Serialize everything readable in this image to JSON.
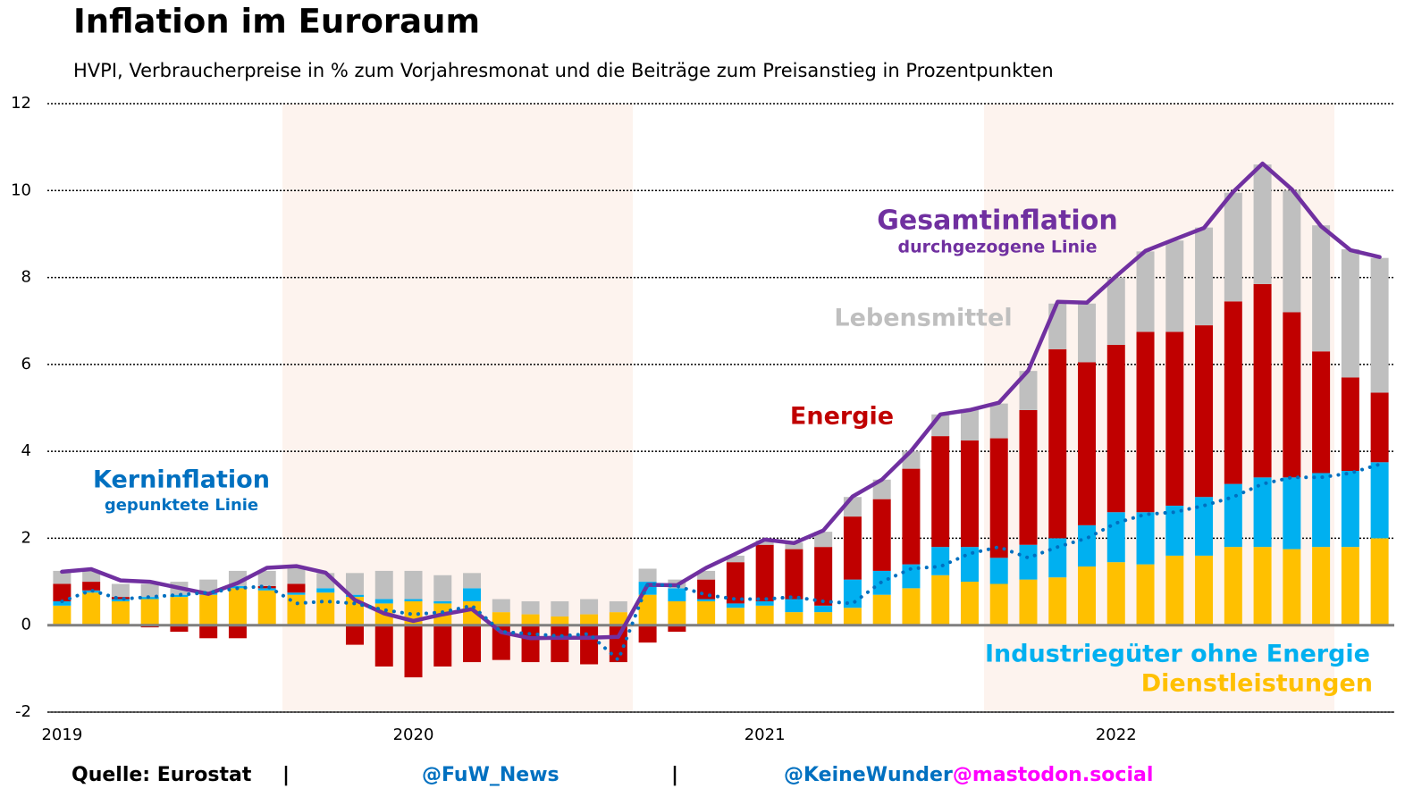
{
  "chart_data": {
    "type": "bar",
    "title": "Inflation im Euroraum",
    "subtitle": "HVPI, Verbraucherpreise in % zum Vorjahresmonat und die Beiträge zum Preisanstieg in Prozentpunkten",
    "categories": [
      "2019",
      null,
      null,
      null,
      null,
      null,
      null,
      null,
      null,
      null,
      null,
      null,
      "2020",
      null,
      null,
      null,
      null,
      null,
      null,
      null,
      null,
      null,
      null,
      null,
      "2021",
      null,
      null,
      null,
      null,
      null,
      null,
      null,
      null,
      null,
      null,
      null,
      "2022",
      null,
      null,
      null,
      null,
      null,
      null,
      null,
      null,
      null
    ],
    "series": [
      {
        "name": "Dienstleistungen",
        "color": "#ffc000",
        "values": [
          0.45,
          0.75,
          0.55,
          0.6,
          0.65,
          0.7,
          0.85,
          0.8,
          0.7,
          0.75,
          0.65,
          0.5,
          0.55,
          0.5,
          0.55,
          0.3,
          0.25,
          0.2,
          0.25,
          0.3,
          0.7,
          0.55,
          0.55,
          0.4,
          0.45,
          0.3,
          0.3,
          0.4,
          0.7,
          0.85,
          1.15,
          1.0,
          0.95,
          1.05,
          1.1,
          1.35,
          1.45,
          1.4,
          1.6,
          1.6,
          1.8,
          1.8,
          1.75,
          1.8,
          1.8,
          2.0
        ]
      },
      {
        "name": "Industriegüter ohne Energie",
        "color": "#00b0f0",
        "values": [
          0.1,
          0.05,
          0.05,
          0.05,
          0.05,
          0.05,
          0.05,
          0.05,
          0.05,
          0.1,
          0.05,
          0.1,
          0.05,
          0.05,
          0.3,
          0,
          0,
          0,
          0,
          0,
          0.3,
          0.3,
          0.05,
          0.1,
          0.1,
          0.3,
          0.15,
          0.65,
          0.55,
          0.55,
          0.65,
          0.8,
          0.6,
          0.8,
          0.9,
          0.95,
          1.15,
          1.2,
          1.15,
          1.35,
          1.45,
          1.6,
          1.65,
          1.7,
          1.75,
          1.75
        ]
      },
      {
        "name": "Energie",
        "color": "#c00000",
        "values": [
          0.4,
          0.2,
          0.05,
          -0.05,
          -0.15,
          -0.3,
          -0.3,
          0.05,
          0.2,
          0,
          -0.45,
          -0.95,
          -1.2,
          -0.95,
          -0.85,
          -0.8,
          -0.85,
          -0.85,
          -0.9,
          -0.85,
          -0.4,
          -0.15,
          0.45,
          0.95,
          1.3,
          1.15,
          1.35,
          1.45,
          1.65,
          2.2,
          2.55,
          2.45,
          2.75,
          3.1,
          4.35,
          3.75,
          3.85,
          4.15,
          4.0,
          3.95,
          4.2,
          4.45,
          3.8,
          2.8,
          2.15,
          1.6
        ]
      },
      {
        "name": "Lebensmittel",
        "color": "#bfbfbf",
        "values": [
          0.3,
          0.25,
          0.3,
          0.3,
          0.3,
          0.3,
          0.35,
          0.35,
          0.4,
          0.35,
          0.5,
          0.65,
          0.65,
          0.6,
          0.35,
          0.3,
          0.3,
          0.35,
          0.35,
          0.25,
          0.3,
          0.2,
          0.2,
          0.15,
          0.1,
          0.15,
          0.35,
          0.45,
          0.45,
          0.4,
          0.5,
          0.7,
          0.8,
          0.9,
          1.05,
          1.35,
          1.55,
          1.85,
          2.1,
          2.25,
          2.5,
          2.75,
          2.8,
          2.9,
          2.95,
          3.1
        ]
      },
      {
        "name": "Gesamtinflation",
        "type": "line",
        "style": "solid",
        "color": "#7030a0",
        "values": [
          1.23,
          1.29,
          1.03,
          1.0,
          0.86,
          0.72,
          0.97,
          1.32,
          1.36,
          1.21,
          0.58,
          0.27,
          0.1,
          0.25,
          0.37,
          -0.16,
          -0.3,
          -0.29,
          -0.29,
          -0.27,
          0.93,
          0.92,
          1.32,
          1.64,
          1.97,
          1.89,
          2.18,
          2.96,
          3.35,
          4.01,
          4.85,
          4.95,
          5.12,
          5.86,
          7.44,
          7.42,
          8.03,
          8.61,
          8.88,
          9.14,
          9.97,
          10.62,
          10.03,
          9.18,
          8.63,
          8.47
        ]
      },
      {
        "name": "Kerninflation",
        "type": "line",
        "style": "dotted",
        "color": "#0070c0",
        "values": [
          0.55,
          0.8,
          0.6,
          0.65,
          0.7,
          0.75,
          0.85,
          0.9,
          0.5,
          0.55,
          0.5,
          0.35,
          0.25,
          0.3,
          0.45,
          -0.15,
          -0.2,
          -0.25,
          -0.2,
          -0.8,
          0.95,
          0.9,
          0.7,
          0.6,
          0.6,
          0.65,
          0.55,
          0.5,
          1.0,
          1.3,
          1.35,
          1.65,
          1.8,
          1.55,
          1.8,
          2.0,
          2.35,
          2.55,
          2.6,
          2.75,
          2.95,
          3.25,
          3.4,
          3.4,
          3.5,
          3.7
        ]
      }
    ],
    "annotations": [
      "durchgezogene Linie",
      "gepunktete Linie"
    ],
    "ylim": [
      -2,
      12
    ],
    "yticks": [
      -2,
      0,
      2,
      4,
      6,
      8,
      10,
      12
    ],
    "grid": true
  },
  "footer": {
    "source": "Quelle: Eurostat",
    "separator": "|",
    "handle1": "@FuW_News",
    "handle2": "@KeineWunder",
    "handle2_domain": "@mastodon.social"
  }
}
